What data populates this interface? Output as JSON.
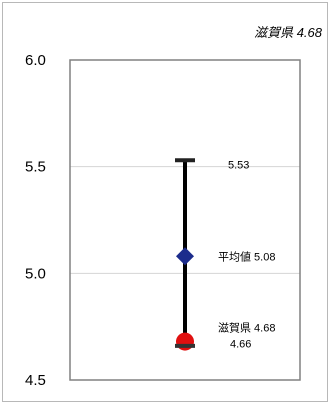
{
  "chart_data": {
    "type": "range",
    "title": "滋賀県 4.68",
    "ylim": [
      4.5,
      6.0
    ],
    "yticks": [
      "6.0",
      "5.5",
      "5.0",
      "4.5"
    ],
    "grid": true,
    "range": {
      "min": 4.66,
      "max": 5.53
    },
    "mean": {
      "label": "平均値",
      "value": 5.08,
      "text": "5.08",
      "color": "#1c2c8c"
    },
    "highlight": {
      "label": "滋賀県",
      "value": 4.68,
      "text": "4.68",
      "color": "#e01010"
    },
    "labels": {
      "max": "5.53",
      "min": "4.66"
    }
  }
}
